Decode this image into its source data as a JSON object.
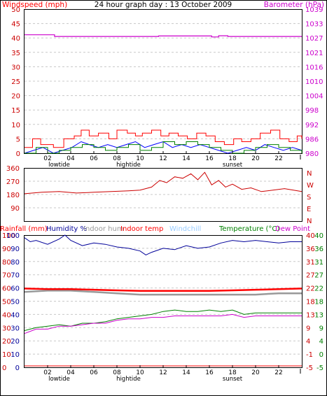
{
  "title": "24 hour graph day : 13 October 2009",
  "colors": {
    "wind_gust": "#ff0000",
    "wind_avg": "#0000ff",
    "wind_alt": "#008000",
    "barometer": "#cc00cc",
    "direction": "#cc0000",
    "humidity": "#000099",
    "indoor_hum": "#999999",
    "indoor_temp": "#ff0000",
    "windchill": "#99ccff",
    "temperature": "#008000",
    "dew_point": "#cc00cc",
    "rainfall": "#ff0000",
    "grid": "#c8c8c8",
    "axis": "#000000"
  },
  "chart_data": [
    {
      "type": "line",
      "panel": "wind",
      "left_label": "Windspeed (mph)",
      "right_label": "Barometer (hPa)",
      "ylim_left": [
        0,
        50
      ],
      "yticks_left": [
        "0",
        "5",
        "10",
        "15",
        "20",
        "25",
        "30",
        "35",
        "40",
        "45",
        "50"
      ],
      "yticks_right": [
        "980",
        "986",
        "992",
        "998",
        "1004",
        "1010",
        "1016",
        "1021",
        "1027",
        "1033",
        "1039"
      ],
      "xticks": [
        "02",
        "04",
        "06",
        "08",
        "10",
        "12",
        "14",
        "16",
        "18",
        "20",
        "22"
      ],
      "tide_labels": [
        {
          "label": "lowtide",
          "hour": 3
        },
        {
          "label": "hightide",
          "hour": 9
        },
        {
          "label": "sunset",
          "hour": 18
        }
      ],
      "series": [
        {
          "key": "gust",
          "x": [
            0,
            0.7,
            1.4,
            2.5,
            3.4,
            4.3,
            4.9,
            5.6,
            6.4,
            7.3,
            8.0,
            8.9,
            9.6,
            10.2,
            11.0,
            11.8,
            12.5,
            13.3,
            14.1,
            14.9,
            15.7,
            16.5,
            17.3,
            18.1,
            18.8,
            19.6,
            20.4,
            21.3,
            22.1,
            22.9,
            23.6,
            24
          ],
          "values": [
            2,
            5,
            3,
            2,
            5,
            6,
            8,
            6,
            7,
            5,
            8,
            7,
            6,
            7,
            8,
            6,
            7,
            6,
            5,
            7,
            6,
            4,
            3,
            5,
            4,
            5,
            7,
            8,
            5,
            4,
            6,
            5
          ]
        },
        {
          "key": "average",
          "x": [
            0,
            0.8,
            1.6,
            2.5,
            3.3,
            4.1,
            4.9,
            5.6,
            6.4,
            7.2,
            8.0,
            8.8,
            9.6,
            10.4,
            11.2,
            12.0,
            12.8,
            13.6,
            14.4,
            15.2,
            16.0,
            16.8,
            17.6,
            18.4,
            19.2,
            20.0,
            20.8,
            21.6,
            22.4,
            23.2,
            24
          ],
          "values": [
            0,
            1,
            2,
            0,
            1,
            2,
            4,
            3,
            2,
            3,
            2,
            3,
            4,
            2,
            3,
            4,
            2,
            3,
            2,
            3,
            2,
            1,
            0,
            1,
            2,
            1,
            3,
            2,
            1,
            2,
            1
          ]
        },
        {
          "key": "average_alt",
          "x": [
            0,
            1.0,
            2.0,
            3.0,
            4.0,
            5.0,
            6.0,
            7.0,
            8.0,
            9.0,
            10.0,
            11.0,
            12.0,
            13.0,
            14.0,
            15.0,
            16.0,
            17.0,
            18.0,
            19.0,
            20.0,
            21.0,
            22.0,
            23.0,
            24
          ],
          "values": [
            0,
            2,
            0,
            1,
            2,
            3,
            2,
            1,
            2,
            3,
            1,
            2,
            4,
            3,
            4,
            3,
            2,
            1,
            0,
            1,
            2,
            3,
            2,
            1,
            0
          ]
        },
        {
          "key": "barometer",
          "x": [
            0,
            2.6,
            11.6,
            16.2,
            16.8,
            17.6,
            24
          ],
          "values": [
            1028.5,
            1027.8,
            1028.0,
            1027.6,
            1028.1,
            1027.8,
            1027.8
          ]
        }
      ]
    },
    {
      "type": "line",
      "panel": "direction",
      "ylim": [
        0,
        360
      ],
      "yticks": [
        "90",
        "180",
        "270",
        "360"
      ],
      "compass": [
        "N",
        "W",
        "S",
        "E",
        "N"
      ],
      "series": [
        {
          "key": "direction",
          "x": [
            0,
            1.5,
            3,
            4.5,
            6,
            7.5,
            9,
            10,
            11,
            11.7,
            12.3,
            13,
            13.7,
            14.4,
            15,
            15.6,
            16.2,
            16.8,
            17.4,
            18,
            18.8,
            19.6,
            20.5,
            21.5,
            22.5,
            24
          ],
          "values": [
            185,
            195,
            200,
            190,
            195,
            200,
            205,
            210,
            230,
            275,
            260,
            300,
            290,
            320,
            280,
            330,
            245,
            275,
            230,
            250,
            215,
            225,
            200,
            210,
            220,
            200
          ]
        }
      ]
    },
    {
      "type": "line",
      "panel": "temperature",
      "left_label": "Rainfall (mm)",
      "labels": [
        "Humidity %",
        "Indoor hum",
        "Indoor temp",
        "Windchill",
        "Temperature (°C)",
        "Dew Point"
      ],
      "yticks_left": [
        "0",
        "10",
        "20",
        "30",
        "40",
        "50",
        "60",
        "70",
        "80",
        "90",
        "100"
      ],
      "yticks_right_a": [
        "-5",
        "-1",
        "4",
        "9",
        "13",
        "18",
        "22",
        "27",
        "31",
        "36",
        "40"
      ],
      "yticks_right_b": [
        "-5",
        "0",
        "4",
        "9",
        "13",
        "18",
        "22",
        "27",
        "31",
        "36",
        "40"
      ],
      "xticks": [
        "02",
        "04",
        "06",
        "08",
        "10",
        "12",
        "14",
        "16",
        "18",
        "20",
        "22"
      ],
      "tide_labels": [
        {
          "label": "lowtide",
          "hour": 3
        },
        {
          "label": "hightide",
          "hour": 9
        },
        {
          "label": "sunset",
          "hour": 18
        }
      ],
      "series": [
        {
          "key": "humidity",
          "x": [
            0,
            0.5,
            1,
            2,
            3,
            3.5,
            4,
            5,
            6,
            7,
            8,
            9,
            10,
            10.5,
            11,
            12,
            13,
            14,
            15,
            16,
            17,
            18,
            19,
            20,
            21,
            22,
            23,
            24
          ],
          "values": [
            98,
            95,
            96,
            93,
            97,
            100,
            96,
            92,
            94,
            93,
            91,
            90,
            88,
            85,
            87,
            90,
            89,
            92,
            90,
            91,
            94,
            96,
            95,
            96,
            95,
            94,
            95,
            95
          ]
        },
        {
          "key": "indoor_hum",
          "x": [
            0,
            2,
            4,
            6,
            8,
            10,
            12,
            14,
            16,
            18,
            20,
            22,
            24
          ],
          "values": [
            57,
            58,
            58,
            57,
            56,
            55,
            55,
            55,
            55,
            55,
            55,
            56,
            56
          ]
        },
        {
          "key": "indoor_temp",
          "x": [
            0,
            2,
            4,
            6,
            8,
            10,
            12,
            14,
            16,
            18,
            20,
            22,
            24
          ],
          "values": [
            21.8,
            21.6,
            21.6,
            21.4,
            21.2,
            21.0,
            21.0,
            21.0,
            21.0,
            21.2,
            21.4,
            21.6,
            21.8
          ]
        },
        {
          "key": "temperature",
          "x": [
            0,
            1,
            2,
            3,
            4,
            5,
            6,
            7,
            8,
            9,
            10,
            11,
            12,
            13,
            14,
            15,
            16,
            17,
            18,
            19,
            20,
            21,
            22,
            23,
            24
          ],
          "values": [
            7.5,
            8.5,
            9.0,
            9.5,
            9.0,
            10.0,
            10.0,
            10.5,
            11.5,
            12.0,
            12.5,
            13.0,
            14.0,
            14.5,
            14.0,
            14.0,
            14.5,
            14.0,
            14.5,
            13.0,
            13.5,
            13.5,
            13.5,
            13.5,
            13.5
          ]
        },
        {
          "key": "dew_point",
          "x": [
            0,
            1,
            2,
            3,
            4,
            5,
            6,
            7,
            8,
            9,
            10,
            11,
            12,
            13,
            14,
            15,
            16,
            17,
            18,
            19,
            20,
            21,
            22,
            23,
            24
          ],
          "values": [
            6.5,
            8.0,
            8.0,
            9.0,
            9.0,
            9.5,
            10.0,
            10.0,
            11.0,
            11.5,
            11.5,
            12.0,
            12.0,
            12.5,
            12.5,
            12.5,
            12.5,
            12.5,
            13.0,
            12.0,
            12.5,
            12.5,
            12.5,
            12.5,
            12.5
          ]
        },
        {
          "key": "rainfall",
          "x": [
            0,
            24
          ],
          "values": [
            0,
            0
          ]
        }
      ]
    }
  ]
}
